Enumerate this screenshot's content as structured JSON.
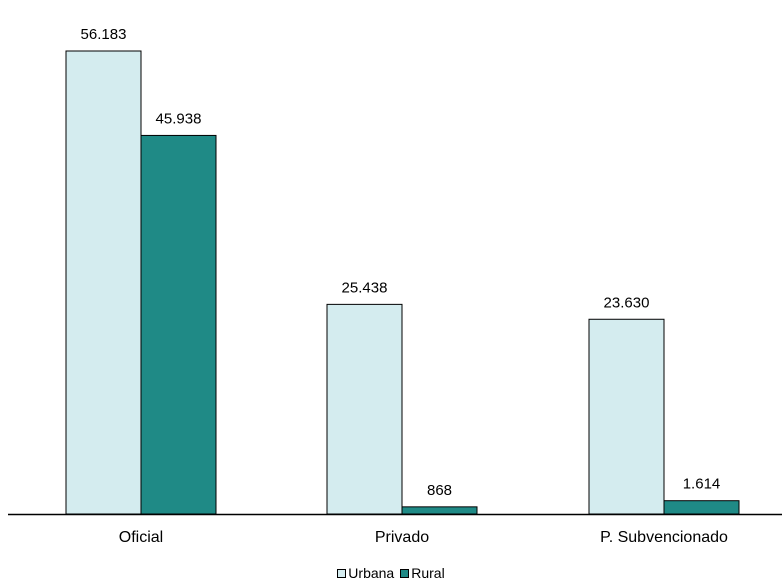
{
  "chart_data": {
    "type": "bar",
    "title": "",
    "xlabel": "",
    "ylabel": "",
    "categories": [
      "Oficial",
      "Privado",
      "P. Subvencionado"
    ],
    "series": [
      {
        "name": "Urbana",
        "values": [
          56183,
          25438,
          23630
        ],
        "labels": [
          "56.183",
          "25.438",
          "23.630"
        ],
        "color": "#d4ecef"
      },
      {
        "name": "Rural",
        "values": [
          45938,
          868,
          1614
        ],
        "labels": [
          "45.938",
          "868",
          "1.614"
        ],
        "color": "#1f8a86"
      }
    ],
    "ylim": [
      0,
      60000
    ],
    "grid": false,
    "legend_position": "bottom",
    "data_labels": true
  }
}
